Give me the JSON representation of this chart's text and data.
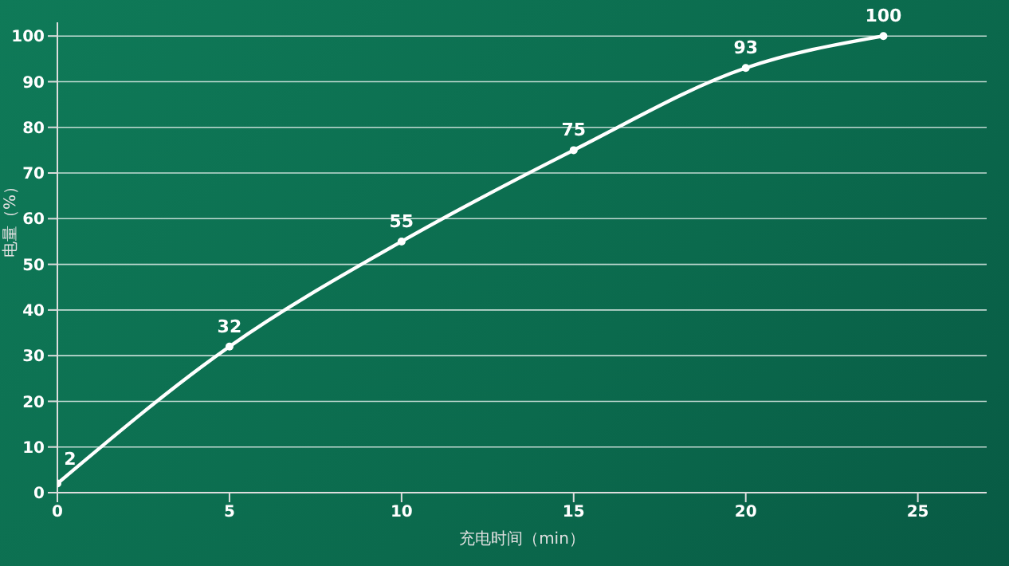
{
  "chart_data": {
    "type": "line",
    "xlabel": "充电时间（min）",
    "ylabel": "电量（%）",
    "x": [
      0,
      5,
      10,
      15,
      20,
      24
    ],
    "series": [
      {
        "color": "#ffffff",
        "values": [
          2,
          32,
          55,
          75,
          93,
          100
        ]
      }
    ],
    "xlim": [
      0,
      27
    ],
    "xticks": [
      0,
      5,
      10,
      15,
      20,
      25
    ],
    "ylim": [
      0,
      103
    ],
    "yticks": [
      0,
      10,
      20,
      30,
      40,
      50,
      60,
      70,
      80,
      90,
      100
    ],
    "grid": "y",
    "legend": false,
    "marker": "circle",
    "data_labels": true
  }
}
